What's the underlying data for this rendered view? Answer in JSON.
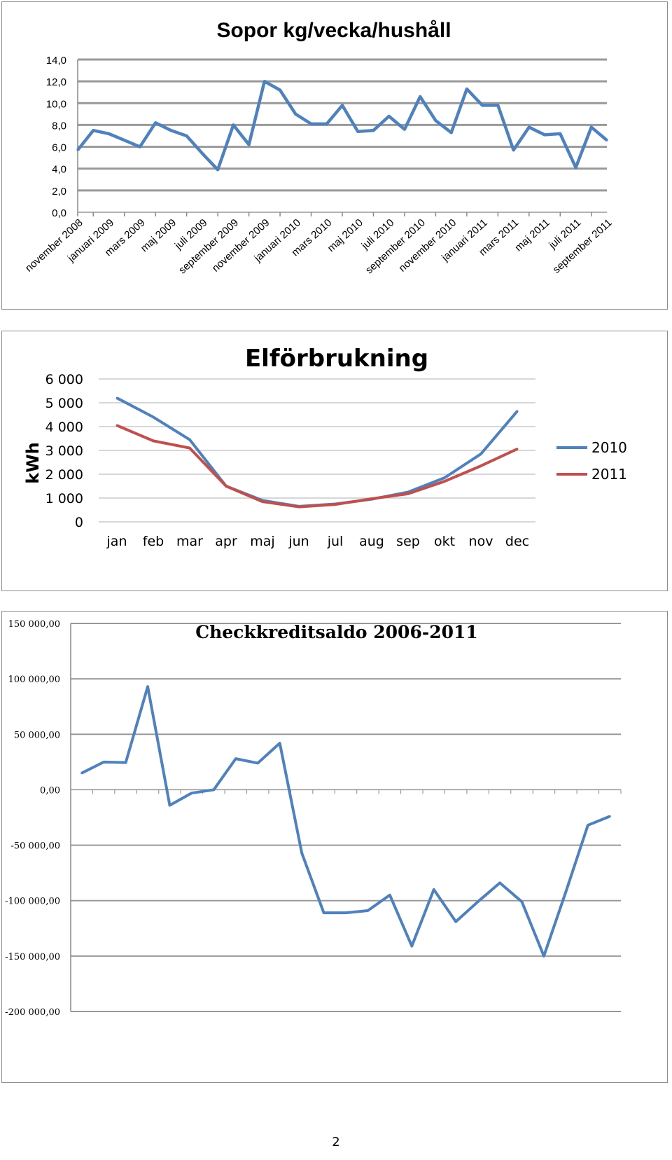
{
  "chart_data": [
    {
      "type": "line",
      "title": "Sopor kg/vecka/hushåll",
      "ylim": [
        0,
        14
      ],
      "yticks": [
        "14,0",
        "12,0",
        "10,0",
        "8,0",
        "6,0",
        "4,0",
        "2,0",
        "0,0"
      ],
      "ytick_values": [
        14,
        12,
        10,
        8,
        6,
        4,
        2,
        0
      ],
      "grid": true,
      "legend": "none",
      "xtick_labels": [
        "november 2008",
        "januari 2009",
        "mars 2009",
        "maj 2009",
        "juli 2009",
        "september 2009",
        "november 2009",
        "januari 2010",
        "mars 2010",
        "maj 2010",
        "juli 2010",
        "september 2010",
        "november 2010",
        "januari 2011",
        "mars 2011",
        "maj 2011",
        "juli 2011",
        "september 2011"
      ],
      "colors": {
        "line": "#4f81bd",
        "grid": "#999999",
        "axis": "#888888"
      },
      "series": [
        {
          "values": [
            5.7,
            7.5,
            7.2,
            6.6,
            6.0,
            8.2,
            7.5,
            7.0,
            5.4,
            3.9,
            8.0,
            6.2,
            12.0,
            11.2,
            9.0,
            8.1,
            8.1,
            9.8,
            7.4,
            7.5,
            8.8,
            7.6,
            10.6,
            8.4,
            7.3,
            11.3,
            9.8,
            9.8,
            5.7,
            7.8,
            7.1,
            7.2,
            4.1,
            7.8,
            6.6
          ]
        }
      ]
    },
    {
      "type": "line",
      "title": "Elförbrukning",
      "ylabel": "kWh",
      "categories": [
        "jan",
        "feb",
        "mar",
        "apr",
        "maj",
        "jun",
        "jul",
        "aug",
        "sep",
        "okt",
        "nov",
        "dec"
      ],
      "ylim": [
        0,
        6000
      ],
      "yticks": [
        "6 000",
        "5 000",
        "4 000",
        "3 000",
        "2 000",
        "1 000",
        "0"
      ],
      "ytick_values": [
        6000,
        5000,
        4000,
        3000,
        2000,
        1000,
        0
      ],
      "grid": true,
      "legend": "right",
      "series": [
        {
          "name": "2010",
          "color": "#4f81bd",
          "values": [
            5200,
            4400,
            3450,
            1500,
            900,
            650,
            750,
            950,
            1250,
            1850,
            2850,
            4650
          ]
        },
        {
          "name": "2011",
          "color": "#c0504d",
          "values": [
            4050,
            3400,
            3100,
            1500,
            850,
            630,
            730,
            970,
            1180,
            1700,
            2350,
            3060
          ]
        }
      ]
    },
    {
      "type": "line",
      "title": "Checkkreditsaldo 2006-2011",
      "ylim": [
        -200000,
        150000
      ],
      "yticks": [
        "150 000,00",
        "100 000,00",
        "50 000,00",
        "0,00",
        "-50 000,00",
        "-100 000,00",
        "-150 000,00",
        "-200 000,00"
      ],
      "ytick_values": [
        150000,
        100000,
        50000,
        0,
        -50000,
        -100000,
        -150000,
        -200000
      ],
      "grid": true,
      "legend": "none",
      "colors": {
        "line": "#4f81bd",
        "grid": "#999999",
        "axis": "#888888"
      },
      "series": [
        {
          "values": [
            15000,
            25000,
            24500,
            93000,
            -14000,
            -3000,
            0,
            28000,
            24000,
            42000,
            -57000,
            -111000,
            -111000,
            -109000,
            -95000,
            -141000,
            -90000,
            -119000,
            -101000,
            -84000,
            -101000,
            -150000,
            -92000,
            -32000,
            -24000
          ]
        }
      ]
    }
  ],
  "page": {
    "number": "2"
  }
}
